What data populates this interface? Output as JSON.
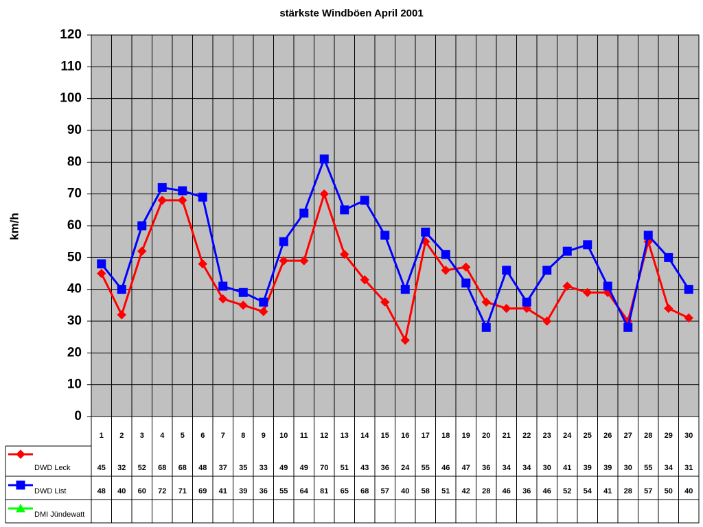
{
  "chart_data": {
    "type": "line",
    "title": "stärkste Windböen April 2001",
    "y_label": "km/h",
    "categories": [
      "1",
      "2",
      "3",
      "4",
      "5",
      "6",
      "7",
      "8",
      "9",
      "10",
      "11",
      "12",
      "13",
      "14",
      "15",
      "16",
      "17",
      "18",
      "19",
      "20",
      "21",
      "22",
      "23",
      "24",
      "25",
      "26",
      "27",
      "28",
      "29",
      "30"
    ],
    "series": [
      {
        "name": "DWD Leck",
        "color": "#ff0000",
        "marker": "diamond",
        "values": [
          45,
          32,
          52,
          68,
          68,
          48,
          37,
          35,
          33,
          49,
          49,
          70,
          51,
          43,
          36,
          24,
          55,
          46,
          47,
          36,
          34,
          34,
          30,
          41,
          39,
          39,
          30,
          55,
          34,
          31
        ]
      },
      {
        "name": "DWD List",
        "color": "#0000ff",
        "marker": "square",
        "values": [
          48,
          40,
          60,
          72,
          71,
          69,
          41,
          39,
          36,
          55,
          64,
          81,
          65,
          68,
          57,
          40,
          58,
          51,
          42,
          28,
          46,
          36,
          46,
          52,
          54,
          41,
          28,
          57,
          50,
          40
        ]
      },
      {
        "name": "DMI Jündewatt",
        "color": "#00ff00",
        "marker": "triangle",
        "values": [
          null,
          null,
          null,
          null,
          null,
          null,
          null,
          null,
          null,
          null,
          null,
          null,
          null,
          null,
          null,
          null,
          null,
          null,
          null,
          null,
          null,
          null,
          null,
          null,
          null,
          null,
          null,
          null,
          null,
          null
        ]
      }
    ],
    "ylim": [
      0,
      120
    ],
    "yticks": [
      0,
      10,
      20,
      30,
      40,
      50,
      60,
      70,
      80,
      90,
      100,
      110,
      120
    ],
    "grid": true,
    "plot_background": "#c0c0c0"
  }
}
